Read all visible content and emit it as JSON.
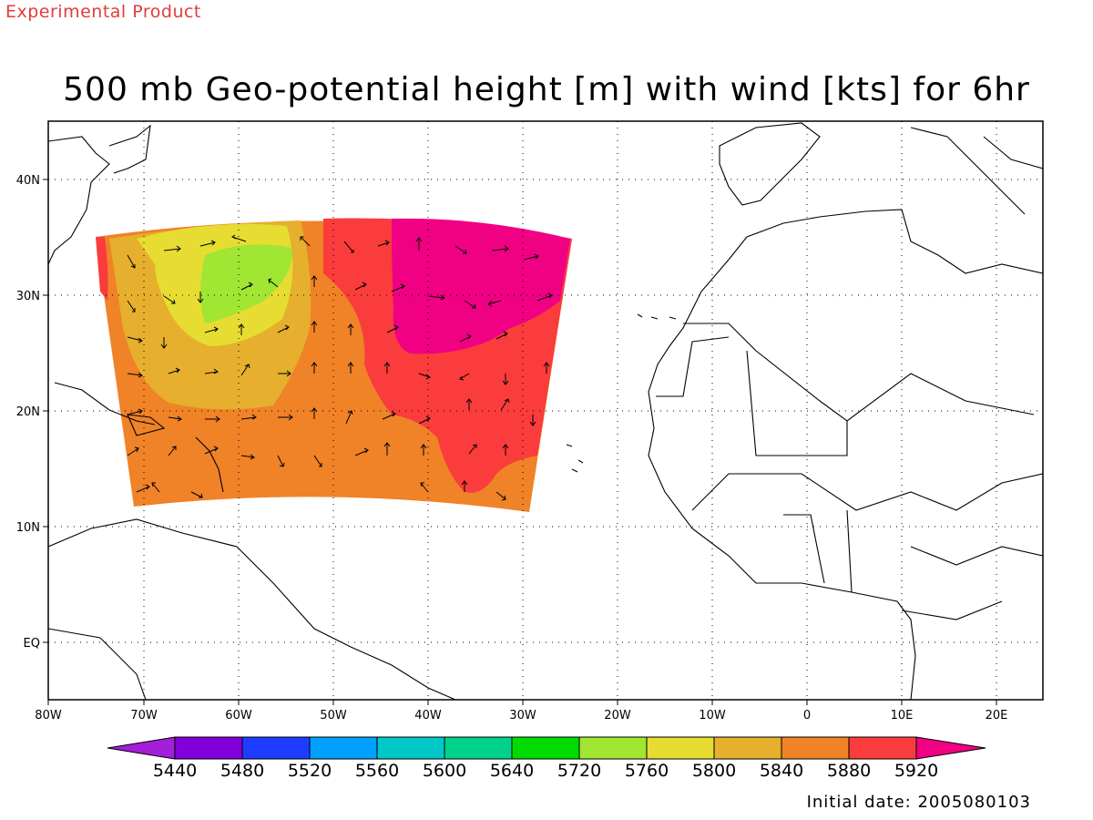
{
  "header": {
    "banner": "Experimental Product",
    "title": "500 mb Geo-potential height [m] with wind [kts] for 6hr"
  },
  "map": {
    "lon_labels": [
      "80W",
      "70W",
      "60W",
      "50W",
      "40W",
      "30W",
      "20W",
      "10W",
      "0",
      "10E",
      "20E"
    ],
    "lat_labels": [
      "40N",
      "30N",
      "20N",
      "10N",
      "EQ"
    ],
    "grid": "dotted"
  },
  "colorbar": {
    "labels": [
      "5440",
      "5480",
      "5520",
      "5560",
      "5600",
      "5640",
      "5720",
      "5760",
      "5800",
      "5840",
      "5880",
      "5920"
    ],
    "colors": [
      "#a31fd8",
      "#8200dc",
      "#1e3cff",
      "#00a0ff",
      "#00c8c8",
      "#00d28c",
      "#00dc00",
      "#a0e632",
      "#e6dc32",
      "#e6af2d",
      "#f08228",
      "#fa3c3c",
      "#f00082"
    ]
  },
  "footer": {
    "initial_date": "Initial date: 2005080103"
  }
}
